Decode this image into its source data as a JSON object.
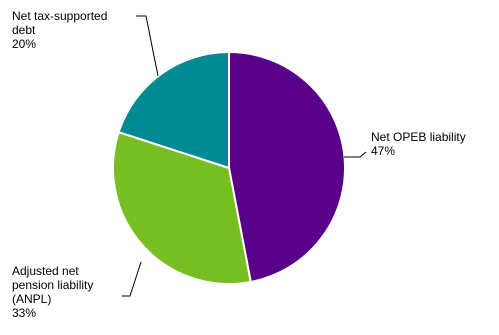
{
  "chart_data": {
    "type": "pie",
    "slices": [
      {
        "label": "Net OPEB liability",
        "value": 47,
        "value_label": "47%",
        "color": "#590089"
      },
      {
        "label": "Adjusted net pension liability (ANPL)",
        "value": 33,
        "value_label": "33%",
        "color": "#76be21"
      },
      {
        "label": "Net tax-supported debt",
        "value": 20,
        "value_label": "20%",
        "color": "#008a92"
      }
    ],
    "start": "top (12 o'clock), clockwise",
    "legend": "none (leader-line labels)"
  },
  "labels": {
    "opeb": {
      "lines": [
        "Net OPEB liability"
      ],
      "pct": "47%"
    },
    "anpl": {
      "lines": [
        "Adjusted net",
        "pension liability",
        "(ANPL)"
      ],
      "pct": "33%"
    },
    "debt": {
      "lines": [
        "Net tax-supported",
        "debt"
      ],
      "pct": "20%"
    }
  }
}
